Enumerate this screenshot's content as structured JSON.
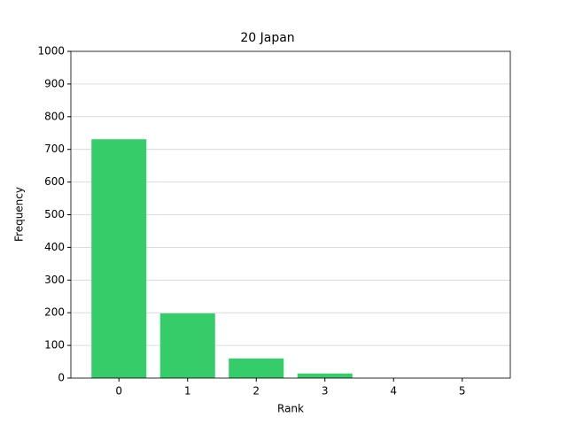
{
  "chart_data": {
    "type": "bar",
    "title": "20 Japan",
    "xlabel": "Rank",
    "ylabel": "Frequency",
    "x": [
      0,
      1,
      2,
      3,
      4,
      5
    ],
    "values": [
      731,
      198,
      60,
      14,
      0,
      0
    ],
    "color": "#35cc6a",
    "xlim": [
      -0.7,
      5.7
    ],
    "xticks": [
      0,
      1,
      2,
      3,
      4,
      5
    ],
    "ylim": [
      0,
      1000
    ],
    "yticks": [
      0,
      100,
      200,
      300,
      400,
      500,
      600,
      700,
      800,
      900,
      1000
    ],
    "grid": true
  }
}
